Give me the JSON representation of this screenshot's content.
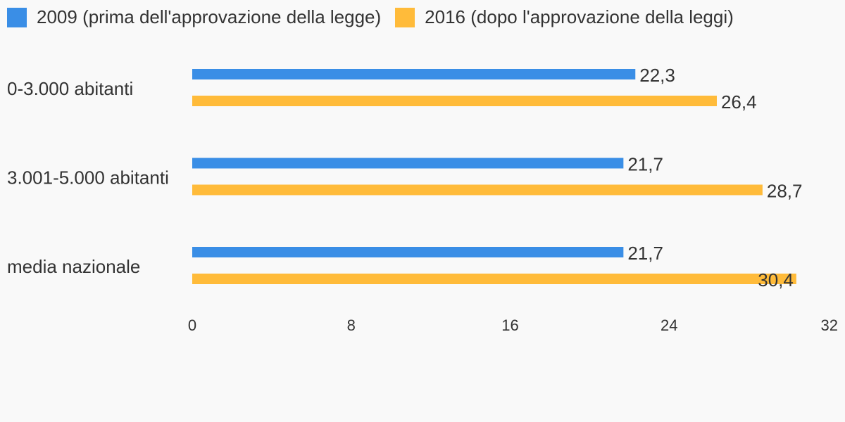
{
  "chart_data": {
    "type": "bar",
    "orientation": "horizontal",
    "categories": [
      "0-3.000 abitanti",
      "3.001-5.000 abitanti",
      "media nazionale"
    ],
    "series": [
      {
        "name": "2009 (prima dell'approvazione della legge)",
        "color": "#3a8ee6",
        "values": [
          22.3,
          21.7,
          21.7
        ],
        "labels": [
          "22,3",
          "21,7",
          "21,7"
        ]
      },
      {
        "name": "2016 (dopo l'approvazione della leggi)",
        "color": "#ffbb3a",
        "values": [
          26.4,
          28.7,
          30.4
        ],
        "labels": [
          "26,4",
          "28,7",
          "30,4"
        ]
      }
    ],
    "xlim": [
      0,
      32
    ],
    "xticks": [
      0,
      8,
      16,
      24,
      32
    ],
    "xtick_labels": [
      "0",
      "8",
      "16",
      "24",
      "32"
    ],
    "legend_position": "top-left",
    "grid": false
  }
}
